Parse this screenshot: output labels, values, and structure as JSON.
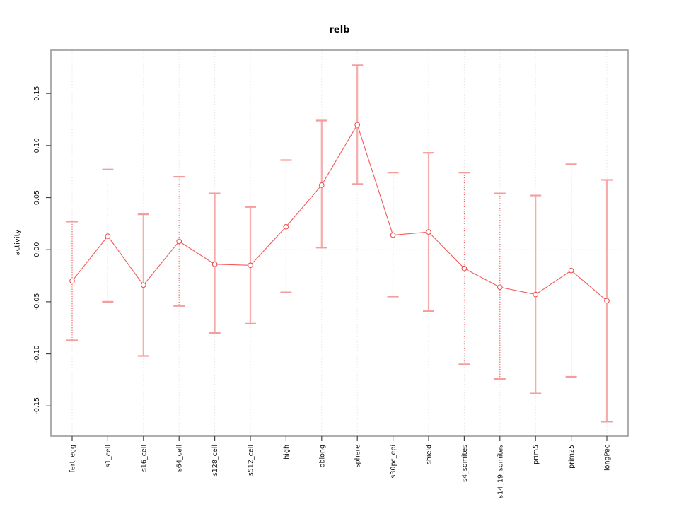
{
  "chart_data": {
    "type": "line",
    "title": "relb",
    "ylabel": "activity",
    "xlabel": "",
    "categories": [
      "fert_egg",
      "s1_cell",
      "s16_cell",
      "s64_cell",
      "s128_cell",
      "s512_cell",
      "high",
      "oblong",
      "sphere",
      "s30pc_epi",
      "shield",
      "s4_somites",
      "s14_19_somites",
      "prim5",
      "prim25",
      "longPec"
    ],
    "values": [
      -0.03,
      0.013,
      -0.034,
      0.008,
      -0.014,
      -0.015,
      0.022,
      0.062,
      0.12,
      0.014,
      0.017,
      -0.018,
      -0.036,
      -0.043,
      -0.02,
      -0.049
    ],
    "error_upper": [
      0.027,
      0.077,
      0.034,
      0.07,
      0.054,
      0.041,
      0.086,
      0.124,
      0.177,
      0.074,
      0.093,
      0.074,
      0.054,
      0.052,
      0.082,
      0.067
    ],
    "error_lower": [
      -0.087,
      -0.05,
      -0.102,
      -0.054,
      -0.08,
      -0.071,
      -0.041,
      0.002,
      0.063,
      -0.045,
      -0.059,
      -0.11,
      -0.124,
      -0.138,
      -0.122,
      -0.165
    ],
    "errorbar_line_style": [
      "dotted",
      "dotted",
      "solid",
      "dotted",
      "solid",
      "solid",
      "dotted",
      "solid",
      "solid",
      "dotted",
      "solid",
      "dotted",
      "dotted",
      "solid",
      "dotted",
      "solid"
    ],
    "ytick_labels": [
      "-0.15",
      "-0.10",
      "-0.05",
      "0.00",
      "0.05",
      "0.10",
      "0.15"
    ],
    "ytick_values": [
      -0.15,
      -0.1,
      -0.05,
      0.0,
      0.05,
      0.1,
      0.15
    ],
    "ylim": [
      -0.179,
      0.1915
    ],
    "grid": "vertical dotted per category plus dotted zero line",
    "legend": "none",
    "marker": "open-circle",
    "colors": {
      "series_line": "#f15b5b",
      "marker_stroke": "#ee4f4f",
      "errorbar_solid": "#f7abab",
      "errorbar_dotted": "#ee5555",
      "errorbar_cap": "#f59d9d",
      "gridline": "#e6e6e6",
      "zero_line": "#dcdcdc",
      "frame": "#999999",
      "tick": "#444444",
      "text": "#111111"
    }
  }
}
